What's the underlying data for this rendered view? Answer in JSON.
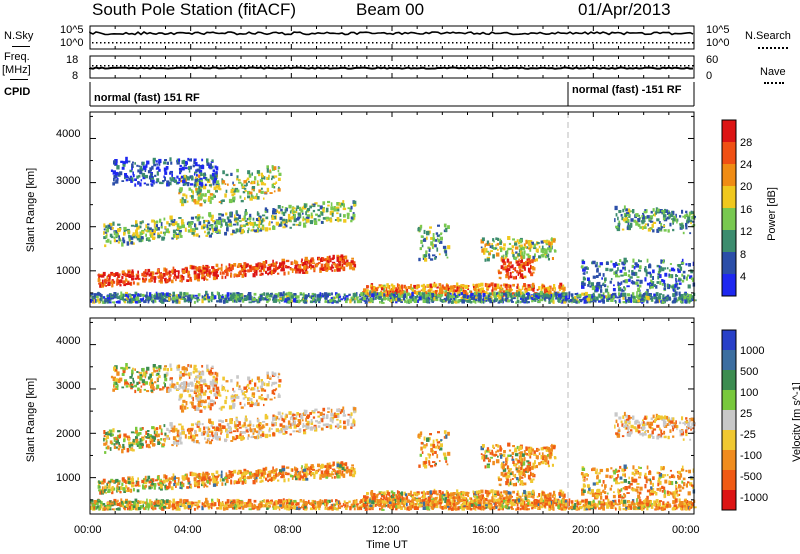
{
  "header": {
    "station": "South Pole Station (fitACF)",
    "beam": "Beam 00",
    "date": "01/Apr/2013"
  },
  "top_panels": {
    "nsky_label": "N.Sky",
    "nsearch_label": "N.Search",
    "nsky_ticks": [
      "10^5",
      "10^0"
    ],
    "nsearch_ticks": [
      "10^5",
      "10^0"
    ],
    "freq_label": "Freq.",
    "freq_unit": "[MHz]",
    "freq_ticks": [
      "18",
      "8"
    ],
    "nave_label": "Nave",
    "nave_ticks": [
      "60",
      "0"
    ],
    "cpid_label": "CPID",
    "cpid_segments": [
      {
        "text": "normal (fast) 151 RF",
        "start_hour": 0
      },
      {
        "text": "normal (fast) -151 RF",
        "start_hour": 19
      }
    ]
  },
  "chart_data": [
    {
      "type": "heatmap",
      "name": "power",
      "ylabel": "Slant Range [km]",
      "yticks": [
        1000,
        2000,
        3000,
        4000
      ],
      "ylim": [
        180,
        4600
      ],
      "xlim": [
        0,
        24
      ],
      "colorbar_label": "Power [dB]",
      "colorbar_ticks": [
        "4",
        "8",
        "12",
        "16",
        "20",
        "24",
        "28"
      ],
      "colorbar_colors": [
        "#1e28f0",
        "#2b4ea8",
        "#3c8c6e",
        "#78c850",
        "#f0c81e",
        "#f08c14",
        "#f05014",
        "#dc1414"
      ]
    },
    {
      "type": "heatmap",
      "name": "velocity",
      "ylabel": "Slant Range [km]",
      "yticks": [
        1000,
        2000,
        3000,
        4000
      ],
      "ylim": [
        180,
        4600
      ],
      "xlim": [
        0,
        24
      ],
      "xlabel": "Time UT",
      "xticks": [
        "00:00",
        "04:00",
        "08:00",
        "12:00",
        "16:00",
        "20:00",
        "00:00"
      ],
      "colorbar_label": "Velocity [m s^-1]",
      "colorbar_ticks": [
        "1000",
        "500",
        "100",
        "25",
        "-25",
        "-100",
        "-500",
        "-1000"
      ],
      "colorbar_colors": [
        "#2840c8",
        "#3c6ea0",
        "#3c8c50",
        "#78c83c",
        "#c8c8c8",
        "#f0c832",
        "#f08c1e",
        "#f05a14",
        "#dc1414"
      ]
    }
  ]
}
